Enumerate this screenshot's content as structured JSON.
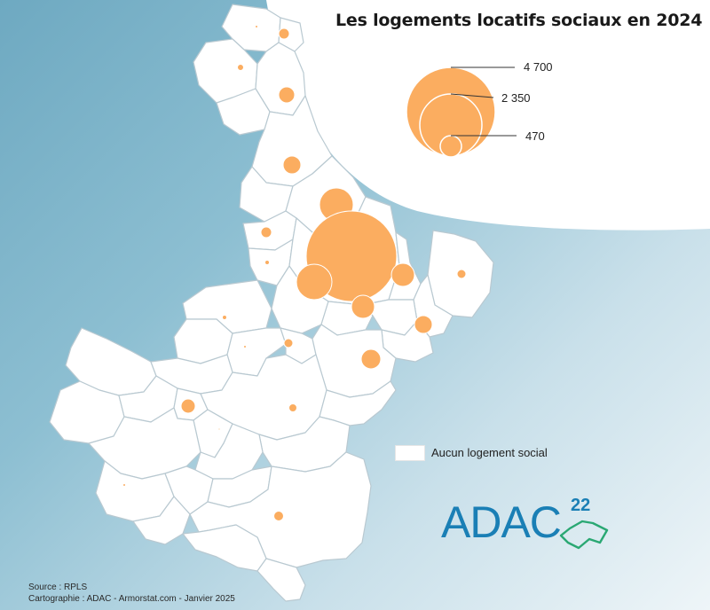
{
  "title": "Les logements locatifs sociaux en 2024",
  "legend": {
    "proportional_circles": [
      {
        "label": "4 700",
        "value": 4700
      },
      {
        "label": "2 350",
        "value": 2350
      },
      {
        "label": "470",
        "value": 470
      }
    ],
    "no_data_label": "Aucun logement social",
    "circle_color": "#fbad60"
  },
  "source": "Source : RPLS",
  "credits": "Cartographie : ADAC - Armorstat.com - Janvier 2025",
  "logo": {
    "text": "ADAC",
    "number": "22",
    "color": "#1a7fb5"
  },
  "colors": {
    "commune_fill": "#ffffff",
    "commune_stroke": "#c0cfd6",
    "circle": "#fbad60",
    "circle_stroke": "#ffffff"
  }
}
